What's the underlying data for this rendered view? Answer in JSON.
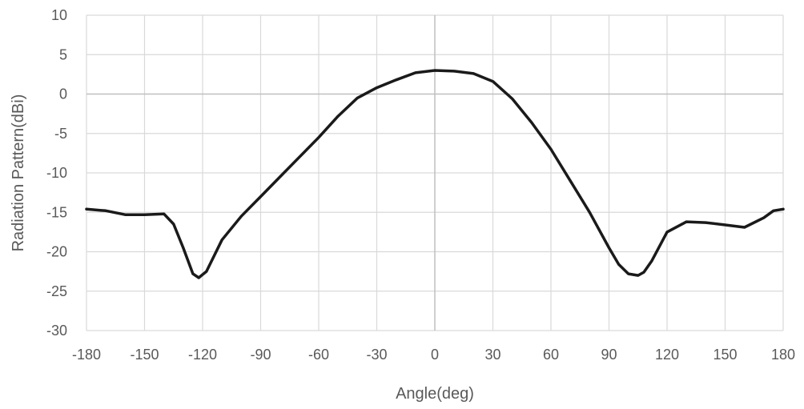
{
  "chart_data": {
    "type": "line",
    "title": "",
    "xlabel": "Angle(deg)",
    "ylabel": "Radiation Pattern(dBi)",
    "xlim": [
      -180,
      180
    ],
    "ylim": [
      -30,
      10
    ],
    "xticks": [
      -180,
      -150,
      -120,
      -90,
      -60,
      -30,
      0,
      30,
      60,
      90,
      120,
      150,
      180
    ],
    "yticks": [
      10,
      5,
      0,
      -5,
      -10,
      -15,
      -20,
      -25,
      -30
    ],
    "grid": true,
    "line_color": "#1a1a1a",
    "grid_color": "#d9d9d9",
    "series": [
      {
        "x": [
          -180,
          -170,
          -160,
          -150,
          -140,
          -135,
          -130,
          -125,
          -122,
          -118,
          -110,
          -100,
          -90,
          -80,
          -70,
          -60,
          -50,
          -40,
          -30,
          -20,
          -10,
          0,
          10,
          20,
          30,
          40,
          50,
          60,
          70,
          80,
          90,
          95,
          100,
          105,
          108,
          112,
          120,
          130,
          140,
          150,
          160,
          170,
          175,
          180
        ],
        "y": [
          -14.6,
          -14.8,
          -15.3,
          -15.3,
          -15.2,
          -16.5,
          -19.5,
          -22.8,
          -23.3,
          -22.5,
          -18.5,
          -15.5,
          -13.0,
          -10.5,
          -8.0,
          -5.5,
          -2.8,
          -0.5,
          0.8,
          1.8,
          2.7,
          3.0,
          2.9,
          2.6,
          1.6,
          -0.6,
          -3.6,
          -7.0,
          -11.0,
          -15.0,
          -19.5,
          -21.6,
          -22.8,
          -23.0,
          -22.6,
          -21.2,
          -17.5,
          -16.2,
          -16.3,
          -16.6,
          -16.9,
          -15.7,
          -14.8,
          -14.6
        ]
      }
    ]
  }
}
